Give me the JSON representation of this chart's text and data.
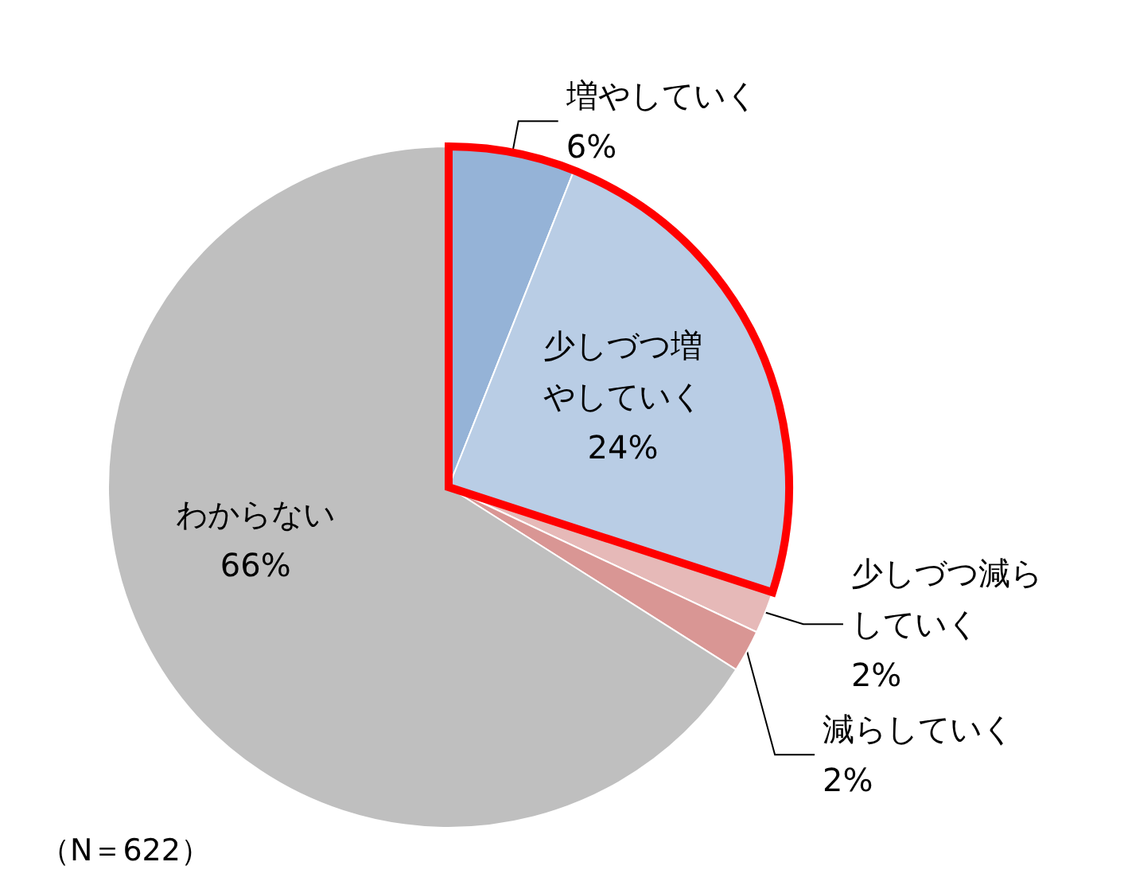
{
  "chart_data": {
    "type": "pie",
    "categories": [
      "増やしていく",
      "少しづつ増やしていく",
      "少しづつ減らしていく",
      "減らしていく",
      "わからない"
    ],
    "values": [
      6,
      24,
      2,
      2,
      66
    ],
    "value_labels": [
      "6%",
      "24%",
      "2%",
      "2%",
      "66%"
    ],
    "colors": [
      "#95b3d7",
      "#b9cde5",
      "#e6b9b8",
      "#d99694",
      "#bfbfbf"
    ],
    "annotations": [
      "（N＝622）"
    ],
    "legend": false
  }
}
